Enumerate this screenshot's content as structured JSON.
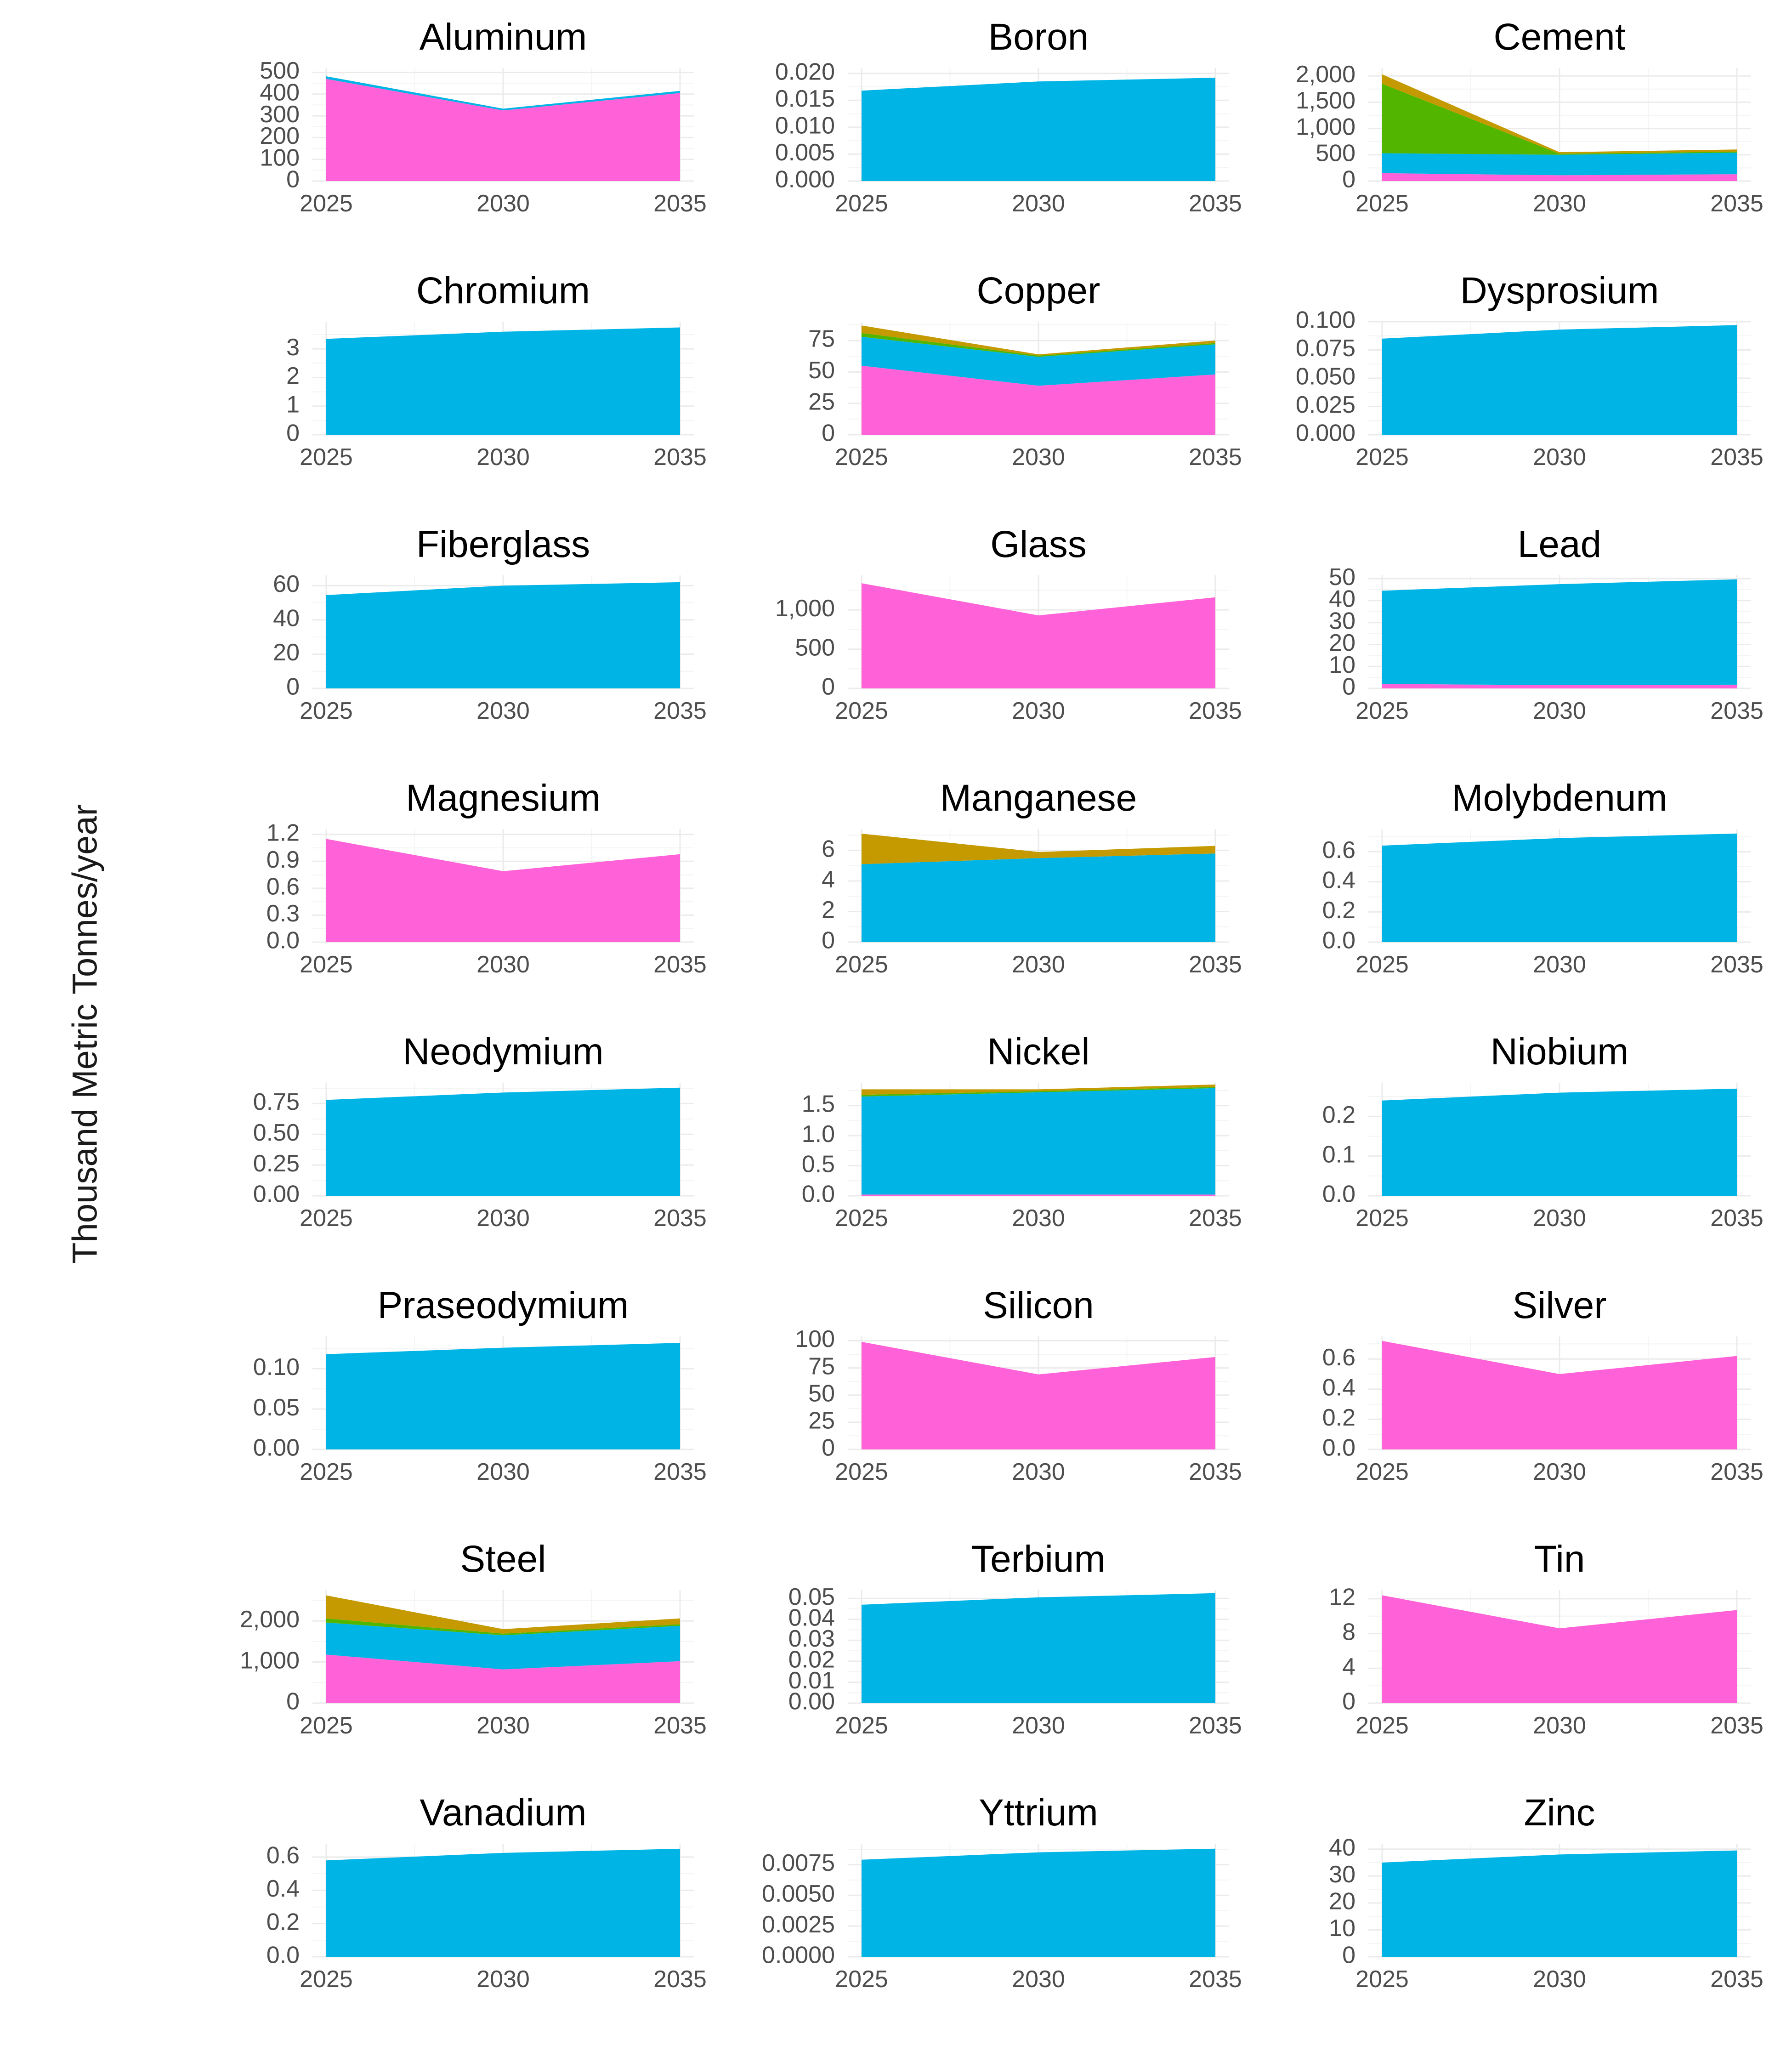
{
  "y_axis_label": "Thousand Metric Tonnes/year",
  "chart_data": {
    "type": "area",
    "stacked": true,
    "x": [
      2025,
      2030,
      2035
    ],
    "x_ticks": [
      "2025",
      "2030",
      "2035"
    ],
    "ylabel": "Thousand Metric Tonnes/year",
    "legend": "none",
    "grid": true,
    "series_colors": {
      "pink": "#ff61d8",
      "blue": "#00b4e6",
      "green": "#52b600",
      "gold": "#c49a00"
    },
    "facets": [
      {
        "title": "Aluminum",
        "ylim": [
          0,
          520
        ],
        "yticks": [
          0,
          100,
          200,
          300,
          400,
          500
        ],
        "tick_labels": [
          "0",
          "100",
          "200",
          "300",
          "400",
          "500"
        ],
        "layers": [
          {
            "color": "#ff61d8",
            "values": [
              470,
              325,
              405
            ]
          },
          {
            "color": "#00b4e6",
            "values": [
              12,
              8,
              10
            ]
          }
        ]
      },
      {
        "title": "Boron",
        "ylim": [
          0,
          0.021
        ],
        "yticks": [
          0,
          0.005,
          0.01,
          0.015,
          0.02
        ],
        "tick_labels": [
          "0.000",
          "0.005",
          "0.010",
          "0.015",
          "0.020"
        ],
        "layers": [
          {
            "color": "#00b4e6",
            "values": [
              0.0168,
              0.0185,
              0.0192
            ]
          }
        ]
      },
      {
        "title": "Cement",
        "ylim": [
          0,
          2150
        ],
        "yticks": [
          0,
          500,
          1000,
          1500,
          2000
        ],
        "tick_labels": [
          "0",
          "500",
          "1,000",
          "1,500",
          "2,000"
        ],
        "layers": [
          {
            "color": "#ff61d8",
            "values": [
              150,
              110,
              130
            ]
          },
          {
            "color": "#00b4e6",
            "values": [
              380,
              390,
              410
            ]
          },
          {
            "color": "#52b600",
            "values": [
              1320,
              20,
              20
            ]
          },
          {
            "color": "#c49a00",
            "values": [
              180,
              30,
              40
            ]
          }
        ]
      },
      {
        "title": "Chromium",
        "ylim": [
          0,
          3.95
        ],
        "yticks": [
          0,
          1,
          2,
          3
        ],
        "tick_labels": [
          "0",
          "1",
          "2",
          "3"
        ],
        "layers": [
          {
            "color": "#00b4e6",
            "values": [
              3.35,
              3.6,
              3.75
            ]
          }
        ]
      },
      {
        "title": "Copper",
        "ylim": [
          0,
          90
        ],
        "yticks": [
          0,
          25,
          50,
          75
        ],
        "tick_labels": [
          "0",
          "25",
          "50",
          "75"
        ],
        "layers": [
          {
            "color": "#ff61d8",
            "values": [
              55,
              39,
              48
            ]
          },
          {
            "color": "#00b4e6",
            "values": [
              23,
              23,
              24
            ]
          },
          {
            "color": "#52b600",
            "values": [
              3,
              1,
              1
            ]
          },
          {
            "color": "#c49a00",
            "values": [
              6,
              1,
              2
            ]
          }
        ]
      },
      {
        "title": "Dysprosium",
        "ylim": [
          0,
          0.1
        ],
        "yticks": [
          0,
          0.025,
          0.05,
          0.075,
          0.1
        ],
        "tick_labels": [
          "0.000",
          "0.025",
          "0.050",
          "0.075",
          "0.100"
        ],
        "layers": [
          {
            "color": "#00b4e6",
            "values": [
              0.085,
              0.093,
              0.097
            ]
          }
        ]
      },
      {
        "title": "Fiberglass",
        "ylim": [
          0,
          66
        ],
        "yticks": [
          0,
          20,
          40,
          60
        ],
        "tick_labels": [
          "0",
          "20",
          "40",
          "60"
        ],
        "layers": [
          {
            "color": "#00b4e6",
            "values": [
              54.5,
              60,
              62
            ]
          }
        ]
      },
      {
        "title": "Glass",
        "ylim": [
          0,
          1440
        ],
        "yticks": [
          0,
          500,
          1000
        ],
        "tick_labels": [
          "0",
          "500",
          "1,000"
        ],
        "layers": [
          {
            "color": "#ff61d8",
            "values": [
              1340,
              930,
              1160
            ]
          }
        ]
      },
      {
        "title": "Lead",
        "ylim": [
          0,
          51.5
        ],
        "yticks": [
          0,
          10,
          20,
          30,
          40,
          50
        ],
        "tick_labels": [
          "0",
          "10",
          "20",
          "30",
          "40",
          "50"
        ],
        "layers": [
          {
            "color": "#ff61d8",
            "values": [
              2,
              1.5,
              1.7
            ]
          },
          {
            "color": "#00b4e6",
            "values": [
              42.5,
              46,
              48
            ]
          }
        ]
      },
      {
        "title": "Magnesium",
        "ylim": [
          0,
          1.26
        ],
        "yticks": [
          0,
          0.3,
          0.6,
          0.9,
          1.2
        ],
        "tick_labels": [
          "0.0",
          "0.3",
          "0.6",
          "0.9",
          "1.2"
        ],
        "layers": [
          {
            "color": "#ff61d8",
            "values": [
              1.15,
              0.79,
              0.98
            ]
          }
        ]
      },
      {
        "title": "Manganese",
        "ylim": [
          0,
          7.4
        ],
        "yticks": [
          0,
          2,
          4,
          6
        ],
        "tick_labels": [
          "0",
          "2",
          "4",
          "6"
        ],
        "layers": [
          {
            "color": "#00b4e6",
            "values": [
              5.1,
              5.5,
              5.8
            ]
          },
          {
            "color": "#c49a00",
            "values": [
              2.0,
              0.4,
              0.5
            ]
          }
        ]
      },
      {
        "title": "Molybdenum",
        "ylim": [
          0,
          0.75
        ],
        "yticks": [
          0,
          0.2,
          0.4,
          0.6
        ],
        "tick_labels": [
          "0.0",
          "0.2",
          "0.4",
          "0.6"
        ],
        "layers": [
          {
            "color": "#00b4e6",
            "values": [
              0.64,
              0.69,
              0.72
            ]
          }
        ]
      },
      {
        "title": "Neodymium",
        "ylim": [
          0,
          0.92
        ],
        "yticks": [
          0,
          0.25,
          0.5,
          0.75
        ],
        "tick_labels": [
          "0.00",
          "0.25",
          "0.50",
          "0.75"
        ],
        "layers": [
          {
            "color": "#00b4e6",
            "values": [
              0.78,
              0.84,
              0.88
            ]
          }
        ]
      },
      {
        "title": "Nickel",
        "ylim": [
          0,
          1.88
        ],
        "yticks": [
          0,
          0.5,
          1,
          1.5
        ],
        "tick_labels": [
          "0.0",
          "0.5",
          "1.0",
          "1.5"
        ],
        "layers": [
          {
            "color": "#ff61d8",
            "values": [
              0.02,
              0.02,
              0.02
            ]
          },
          {
            "color": "#00b4e6",
            "values": [
              1.63,
              1.7,
              1.77
            ]
          },
          {
            "color": "#52b600",
            "values": [
              0.03,
              0.02,
              0.02
            ]
          },
          {
            "color": "#c49a00",
            "values": [
              0.09,
              0.03,
              0.04
            ]
          }
        ]
      },
      {
        "title": "Niobium",
        "ylim": [
          0,
          0.285
        ],
        "yticks": [
          0,
          0.1,
          0.2
        ],
        "tick_labels": [
          "0.0",
          "0.1",
          "0.2"
        ],
        "layers": [
          {
            "color": "#00b4e6",
            "values": [
              0.24,
              0.26,
              0.27
            ]
          }
        ]
      },
      {
        "title": "Praseodymium",
        "ylim": [
          0,
          0.14
        ],
        "yticks": [
          0,
          0.05,
          0.1
        ],
        "tick_labels": [
          "0.00",
          "0.05",
          "0.10"
        ],
        "layers": [
          {
            "color": "#00b4e6",
            "values": [
              0.118,
              0.126,
              0.132
            ]
          }
        ]
      },
      {
        "title": "Silicon",
        "ylim": [
          0,
          104
        ],
        "yticks": [
          0,
          25,
          50,
          75,
          100
        ],
        "tick_labels": [
          "0",
          "25",
          "50",
          "75",
          "100"
        ],
        "layers": [
          {
            "color": "#ff61d8",
            "values": [
              99,
              69,
              85
            ]
          }
        ]
      },
      {
        "title": "Silver",
        "ylim": [
          0,
          0.75
        ],
        "yticks": [
          0,
          0.2,
          0.4,
          0.6
        ],
        "tick_labels": [
          "0.0",
          "0.2",
          "0.4",
          "0.6"
        ],
        "layers": [
          {
            "color": "#ff61d8",
            "values": [
              0.72,
              0.5,
              0.62
            ]
          }
        ]
      },
      {
        "title": "Steel",
        "ylim": [
          0,
          2750
        ],
        "yticks": [
          0,
          1000,
          2000
        ],
        "tick_labels": [
          "0",
          "1,000",
          "2,000"
        ],
        "layers": [
          {
            "color": "#ff61d8",
            "values": [
              1180,
              820,
              1020
            ]
          },
          {
            "color": "#00b4e6",
            "values": [
              780,
              830,
              860
            ]
          },
          {
            "color": "#52b600",
            "values": [
              100,
              40,
              40
            ]
          },
          {
            "color": "#c49a00",
            "values": [
              560,
              110,
              140
            ]
          }
        ]
      },
      {
        "title": "Terbium",
        "ylim": [
          0,
          0.054
        ],
        "yticks": [
          0,
          0.01,
          0.02,
          0.03,
          0.04,
          0.05
        ],
        "tick_labels": [
          "0.00",
          "0.01",
          "0.02",
          "0.03",
          "0.04",
          "0.05"
        ],
        "layers": [
          {
            "color": "#00b4e6",
            "values": [
              0.047,
              0.0505,
              0.0525
            ]
          }
        ]
      },
      {
        "title": "Tin",
        "ylim": [
          0,
          13
        ],
        "yticks": [
          0,
          4,
          8,
          12
        ],
        "tick_labels": [
          "0",
          "4",
          "8",
          "12"
        ],
        "layers": [
          {
            "color": "#ff61d8",
            "values": [
              12.4,
              8.6,
              10.7
            ]
          }
        ]
      },
      {
        "title": "Vanadium",
        "ylim": [
          0,
          0.68
        ],
        "yticks": [
          0,
          0.2,
          0.4,
          0.6
        ],
        "tick_labels": [
          "0.0",
          "0.2",
          "0.4",
          "0.6"
        ],
        "layers": [
          {
            "color": "#00b4e6",
            "values": [
              0.58,
              0.625,
              0.65
            ]
          }
        ]
      },
      {
        "title": "Yttrium",
        "ylim": [
          0,
          0.0092
        ],
        "yticks": [
          0,
          0.0025,
          0.005,
          0.0075
        ],
        "tick_labels": [
          "0.0000",
          "0.0025",
          "0.0050",
          "0.0075"
        ],
        "layers": [
          {
            "color": "#00b4e6",
            "values": [
              0.0079,
              0.0085,
              0.0088
            ]
          }
        ]
      },
      {
        "title": "Zinc",
        "ylim": [
          0,
          42
        ],
        "yticks": [
          0,
          10,
          20,
          30,
          40
        ],
        "tick_labels": [
          "0",
          "10",
          "20",
          "30",
          "40"
        ],
        "layers": [
          {
            "color": "#00b4e6",
            "values": [
              35,
              38,
              39.5
            ]
          }
        ]
      }
    ]
  }
}
